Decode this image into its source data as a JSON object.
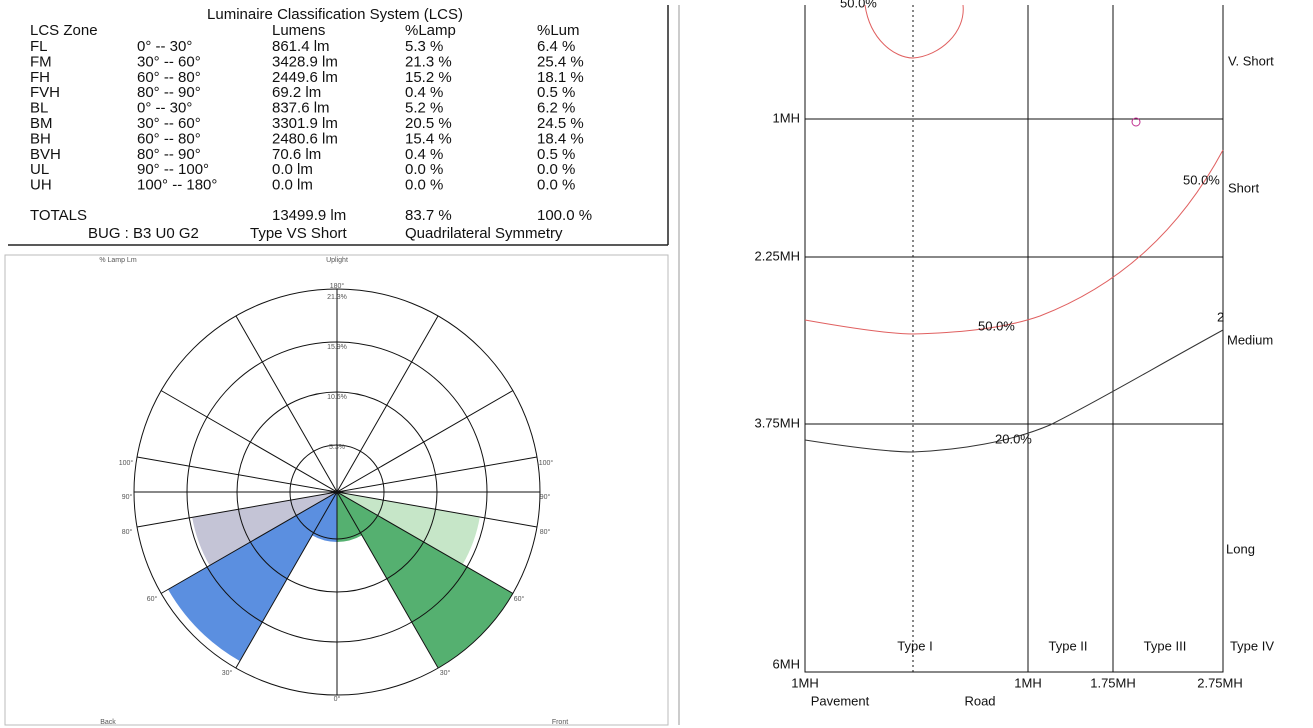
{
  "table": {
    "title": "Luminaire Classification System (LCS)",
    "headers": [
      "LCS Zone",
      "Lumens",
      "%Lamp",
      "%Lum"
    ],
    "rows": [
      [
        "FL",
        "0° -- 30°",
        "861.4 lm",
        "5.3 %",
        "6.4 %"
      ],
      [
        "FM",
        "30° -- 60°",
        "3428.9 lm",
        "21.3 %",
        "25.4 %"
      ],
      [
        "FH",
        "60° -- 80°",
        "2449.6 lm",
        "15.2 %",
        "18.1 %"
      ],
      [
        "FVH",
        "80° -- 90°",
        "69.2 lm",
        "0.4 %",
        "0.5 %"
      ],
      [
        "BL",
        "0° -- 30°",
        "837.6 lm",
        "5.2 %",
        "6.2 %"
      ],
      [
        "BM",
        "30° -- 60°",
        "3301.9 lm",
        "20.5 %",
        "24.5 %"
      ],
      [
        "BH",
        "60° -- 80°",
        "2480.6 lm",
        "15.4 %",
        "18.4 %"
      ],
      [
        "BVH",
        "80° -- 90°",
        "70.6 lm",
        "0.4 %",
        "0.5 %"
      ],
      [
        "UL",
        "90° -- 100°",
        "0.0 lm",
        "0.0 %",
        "0.0 %"
      ],
      [
        "UH",
        "100° -- 180°",
        "0.0 lm",
        "0.0 %",
        "0.0 %"
      ]
    ],
    "totals": {
      "label": "TOTALS",
      "lumens": "13499.9 lm",
      "lamp": "83.7 %",
      "lum": "100.0 %"
    },
    "footer": [
      "BUG : B3 U0 G2",
      "Type VS  Short",
      "Quadrilateral Symmetry"
    ]
  },
  "polar": {
    "corner_label": "% Lamp Lm",
    "top_label": "Uplight",
    "top_angle": "180°",
    "rings": [
      "21.3%",
      "15.9%",
      "10.6%",
      "5.3%"
    ],
    "left_angles": [
      "100°",
      "90°",
      "80°",
      "60°",
      "30°"
    ],
    "right_angles": [
      "100°",
      "90°",
      "80°",
      "60°",
      "30°"
    ],
    "bottom_angle": "0°",
    "back": "Back",
    "front": "Front"
  },
  "road": {
    "top_curve_label": "50.0%",
    "y_labels": [
      "1MH",
      "2.25MH",
      "3.75MH",
      "6MH"
    ],
    "x_labels": [
      "1MH",
      "1MH",
      "1.75MH",
      "2.75MH"
    ],
    "types": [
      "Type I",
      "Type II",
      "Type III",
      "Type IV"
    ],
    "ranges": [
      "V. Short",
      "Short",
      "Medium",
      "Long"
    ],
    "curve_labels": [
      "50.0%",
      "50.0%",
      "20.0%"
    ],
    "edge_label": "2",
    "bottom": [
      "Pavement",
      "Road"
    ]
  }
}
